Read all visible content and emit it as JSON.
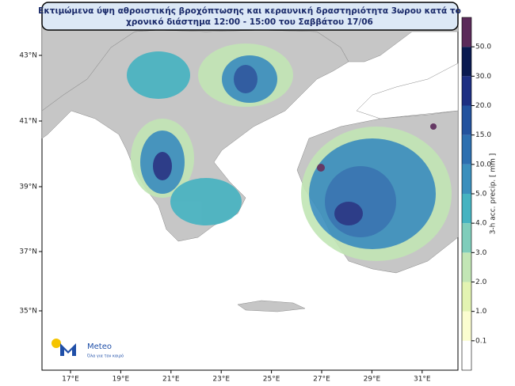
{
  "header": {
    "title_line1": "Εκτιμώμενα ύψη αθροιστικής βροχόπτωσης και κεραυνική δραστηριότητα 3ωρου κατά το",
    "title_line2": "χρονικό διάστημα 12:00 - 15:00 του Σαββάτου 17/06"
  },
  "map": {
    "lon_ticks": [
      "17°E",
      "19°E",
      "21°E",
      "23°E",
      "25°E",
      "27°E",
      "29°E",
      "31°E"
    ],
    "lat_ticks": [
      "43°N",
      "41°N",
      "39°N",
      "37°N",
      "35°N"
    ]
  },
  "colorbar": {
    "label": "3-h acc. precip. [ mm ]",
    "levels": [
      {
        "value": 0.1,
        "label": "0.1"
      },
      {
        "value": 1,
        "label": "1.0"
      },
      {
        "value": 2,
        "label": "2.0"
      },
      {
        "value": 3,
        "label": "3.0"
      },
      {
        "value": 4,
        "label": "4.0"
      },
      {
        "value": 5,
        "label": "5.0"
      },
      {
        "value": 10,
        "label": "10.0"
      },
      {
        "value": 15,
        "label": "15.0"
      },
      {
        "value": 20,
        "label": "20.0"
      },
      {
        "value": 30,
        "label": "30.0"
      },
      {
        "value": 50,
        "label": "50.0"
      }
    ],
    "colors": [
      "#ffffff",
      "#fbfdd0",
      "#e3f4b2",
      "#c2e6b5",
      "#7fcdbb",
      "#45b3c1",
      "#3a8fbd",
      "#2c6fb0",
      "#22529e",
      "#1d2f82",
      "#0a1a50",
      "#5b2a5a"
    ]
  },
  "logo": {
    "name": "Meteo",
    "tagline": "Όλα για τον καιρό"
  }
}
